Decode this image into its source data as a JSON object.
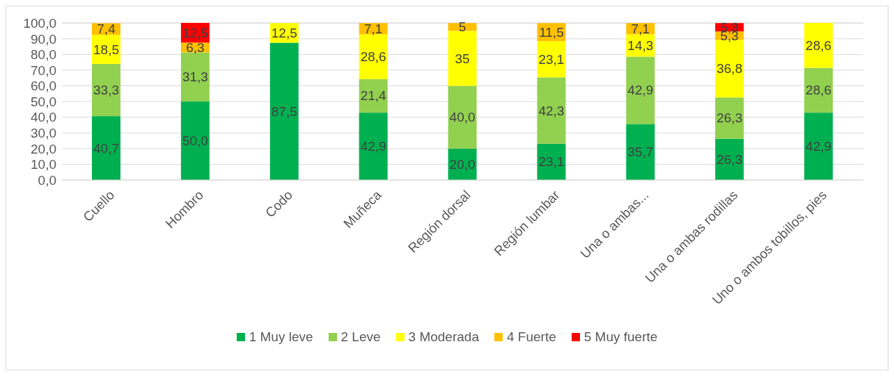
{
  "chart_data": {
    "type": "bar",
    "stacked": true,
    "categories": [
      "Cuello",
      "Hombro",
      "Codo",
      "Muñeca",
      "Región dorsal",
      "Región lumbar",
      "Una o ambas...",
      "Una o ambas rodillas",
      "Uno o ambos tobillos, pies"
    ],
    "series": [
      {
        "name": "1 Muy leve",
        "color": "#00b050",
        "values": [
          40.7,
          50.0,
          87.5,
          42.9,
          20.0,
          23.1,
          35.7,
          26.3,
          42.9
        ],
        "value_labels": [
          "40,7",
          "50,0",
          "87,5",
          "42,9",
          "20,0",
          "23,1",
          "35,7",
          "26,3",
          "42,9"
        ]
      },
      {
        "name": "2 Leve",
        "color": "#92d050",
        "values": [
          33.3,
          31.3,
          null,
          21.4,
          40.0,
          42.3,
          42.9,
          26.3,
          28.6
        ],
        "value_labels": [
          "33,3",
          "31,3",
          null,
          "21,4",
          "40,0",
          "42,3",
          "42,9",
          "26,3",
          "28,6"
        ]
      },
      {
        "name": "3 Moderada",
        "color": "#ffff00",
        "values": [
          18.5,
          null,
          12.5,
          28.6,
          35,
          23.1,
          14.3,
          36.8,
          28.6
        ],
        "value_labels": [
          "18,5",
          null,
          "12,5",
          "28,6",
          "35",
          "23,1",
          "14,3",
          "36,8",
          "28,6"
        ]
      },
      {
        "name": "4 Fuerte",
        "color": "#ffc000",
        "values": [
          7.4,
          6.3,
          null,
          7.1,
          5,
          11.5,
          7.1,
          5.3,
          null
        ],
        "value_labels": [
          "7,4",
          "6,3",
          null,
          "7,1",
          "5",
          "11,5",
          "7,1",
          "5,3",
          null
        ]
      },
      {
        "name": "5 Muy fuerte",
        "color": "#ff0000",
        "values": [
          null,
          12.5,
          null,
          null,
          null,
          null,
          null,
          5.3,
          null
        ],
        "value_labels": [
          null,
          "12,5",
          null,
          null,
          null,
          null,
          null,
          "5,3",
          null
        ]
      }
    ],
    "ylim": [
      0,
      100
    ],
    "yticks": [
      {
        "value": 0,
        "label": "0,0"
      },
      {
        "value": 10,
        "label": "10,0"
      },
      {
        "value": 20,
        "label": "20,0"
      },
      {
        "value": 30,
        "label": "30,0"
      },
      {
        "value": 40,
        "label": "40,0"
      },
      {
        "value": 50,
        "label": "50,0"
      },
      {
        "value": 60,
        "label": "60,0"
      },
      {
        "value": 70,
        "label": "70,0"
      },
      {
        "value": 80,
        "label": "80,0"
      },
      {
        "value": 90,
        "label": "90,0"
      },
      {
        "value": 100,
        "label": "100,0"
      }
    ],
    "grid": "y",
    "legend": "bottom"
  }
}
